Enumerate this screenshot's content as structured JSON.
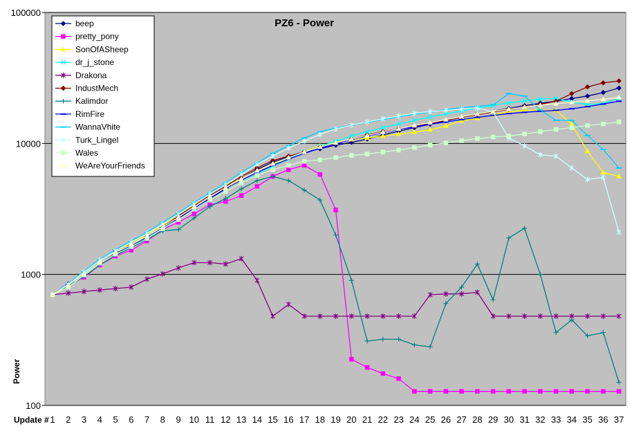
{
  "chart_data": {
    "type": "line",
    "title": "PZ6 - Power",
    "xlabel": "Update #",
    "ylabel": "Power",
    "yscale": "log",
    "ylim": [
      100,
      100000
    ],
    "y_ticks": [
      "100",
      "1000",
      "10000",
      "100000"
    ],
    "x": [
      1,
      2,
      3,
      4,
      5,
      6,
      7,
      8,
      9,
      10,
      11,
      12,
      13,
      14,
      15,
      16,
      17,
      18,
      19,
      20,
      21,
      22,
      23,
      24,
      25,
      26,
      27,
      28,
      29,
      30,
      31,
      32,
      33,
      34,
      35,
      36,
      37
    ],
    "grid": "horizontal",
    "legend_position": "top-left",
    "plot_background": "#c0c0c0",
    "series": [
      {
        "name": "beep",
        "color": "#000080",
        "marker": "diamond",
        "values": [
          700,
          850,
          1000,
          1250,
          1450,
          1650,
          1900,
          2200,
          2650,
          3150,
          3800,
          4500,
          5400,
          6300,
          7200,
          7900,
          8600,
          9100,
          9700,
          10200,
          10800,
          11600,
          12400,
          13200,
          14000,
          14900,
          15800,
          16700,
          17600,
          18500,
          19400,
          20300,
          21000,
          22000,
          23000,
          24500,
          26500
        ]
      },
      {
        "name": "pretty_pony",
        "color": "#ff00ff",
        "marker": "square",
        "values": [
          700,
          830,
          950,
          1180,
          1380,
          1530,
          1800,
          2200,
          2500,
          2900,
          3400,
          3600,
          4000,
          4700,
          5600,
          6300,
          6800,
          5800,
          3100,
          225,
          195,
          175,
          160,
          128,
          128,
          128,
          128,
          128,
          128,
          128,
          128,
          128,
          128,
          128,
          128,
          128,
          128
        ]
      },
      {
        "name": "SonOfASheep",
        "color": "#ffff00",
        "marker": "triangle",
        "values": [
          700,
          830,
          1030,
          1270,
          1500,
          1720,
          2000,
          2400,
          2800,
          3400,
          3950,
          4650,
          5400,
          6200,
          6900,
          7700,
          8700,
          9600,
          10200,
          10700,
          11000,
          11400,
          11800,
          12200,
          12700,
          13600,
          14900,
          15600,
          16600,
          17400,
          17900,
          18000,
          17900,
          14000,
          8700,
          6000,
          5600
        ]
      },
      {
        "name": "dr_j_stone",
        "color": "#00ffff",
        "marker": "x",
        "values": [
          700,
          820,
          1020,
          1250,
          1470,
          1670,
          1930,
          2200,
          2750,
          3200,
          3700,
          4300,
          5000,
          5800,
          6700,
          7600,
          8600,
          9500,
          10400,
          11400,
          12300,
          13200,
          14100,
          15000,
          15900,
          16800,
          17700,
          18600,
          19500,
          20400,
          21100,
          21800,
          22000,
          20700,
          19800,
          20200,
          22000
        ]
      },
      {
        "name": "Drakona",
        "color": "#800080",
        "marker": "star",
        "values": [
          700,
          720,
          740,
          760,
          780,
          800,
          920,
          1010,
          1120,
          1230,
          1230,
          1200,
          1320,
          900,
          480,
          590,
          480,
          480,
          480,
          480,
          480,
          480,
          480,
          480,
          700,
          710,
          710,
          730,
          480,
          480,
          480,
          480,
          480,
          480,
          480,
          480,
          480
        ]
      },
      {
        "name": "IndustMech",
        "color": "#800000",
        "marker": "diamond",
        "values": [
          700,
          840,
          1000,
          1250,
          1480,
          1700,
          1950,
          2300,
          2800,
          3350,
          4000,
          4700,
          5600,
          6500,
          7400,
          8000,
          8600,
          9400,
          10000,
          10800,
          11600,
          12300,
          12900,
          13500,
          14200,
          15000,
          15800,
          16600,
          17400,
          18200,
          19000,
          19900,
          21000,
          24000,
          27000,
          29000,
          30000
        ]
      },
      {
        "name": "Kalimdor",
        "color": "#008080",
        "marker": "plus",
        "values": [
          700,
          820,
          960,
          1180,
          1400,
          1600,
          1850,
          2150,
          2200,
          2700,
          3300,
          3800,
          4500,
          5200,
          5600,
          5200,
          4400,
          3700,
          2000,
          900,
          310,
          320,
          320,
          290,
          280,
          600,
          800,
          1200,
          640,
          1900,
          2250,
          1000,
          360,
          450,
          340,
          360,
          150
        ]
      },
      {
        "name": "RimFire",
        "color": "#0000ff",
        "marker": "dash",
        "values": [
          700,
          830,
          1010,
          1260,
          1480,
          1680,
          1940,
          2280,
          2700,
          3200,
          3800,
          4550,
          5250,
          6000,
          6800,
          7600,
          8400,
          9200,
          9950,
          10700,
          11400,
          12100,
          12800,
          13400,
          14000,
          14600,
          15200,
          15800,
          16400,
          16900,
          17300,
          17600,
          17900,
          18400,
          19100,
          20000,
          21000
        ]
      },
      {
        "name": "WannaVhite",
        "color": "#00ccff",
        "marker": "dash",
        "values": [
          700,
          850,
          1060,
          1300,
          1550,
          1800,
          2100,
          2500,
          2950,
          3550,
          4200,
          5000,
          6000,
          7100,
          8400,
          9600,
          11000,
          12300,
          13100,
          13800,
          14500,
          15200,
          16000,
          16700,
          17400,
          18100,
          18800,
          19200,
          19700,
          24000,
          23000,
          18000,
          15000,
          15000,
          11500,
          9000,
          6500
        ]
      },
      {
        "name": "Turk_Lingel",
        "color": "#ccffff",
        "marker": "star",
        "values": [
          700,
          840,
          1040,
          1280,
          1510,
          1760,
          2050,
          2420,
          2880,
          3450,
          4100,
          4850,
          5800,
          6900,
          8000,
          9200,
          10400,
          11700,
          12900,
          13800,
          14600,
          15400,
          16200,
          17000,
          17500,
          17900,
          18300,
          18600,
          17400,
          11000,
          9600,
          8200,
          8000,
          6500,
          5300,
          5500,
          2100
        ]
      },
      {
        "name": "Wales",
        "color": "#ccffcc",
        "marker": "square",
        "values": [
          700,
          800,
          990,
          1220,
          1430,
          1630,
          1880,
          2230,
          2620,
          3150,
          3700,
          4300,
          5000,
          5700,
          6300,
          6800,
          7300,
          7500,
          7800,
          8100,
          8300,
          8600,
          8900,
          9300,
          9700,
          10100,
          10500,
          10900,
          11200,
          11400,
          11800,
          12300,
          12800,
          13200,
          13700,
          14100,
          14600
        ]
      },
      {
        "name": "WeAreYourFriends",
        "color": "#ffffcc",
        "marker": "triangle",
        "values": [
          700,
          830,
          1010,
          1250,
          1480,
          1690,
          1960,
          2300,
          2730,
          3280,
          3930,
          4600,
          5350,
          6200,
          7000,
          7800,
          8600,
          9400,
          10100,
          10800,
          11500,
          12200,
          12900,
          13700,
          14400,
          15200,
          16000,
          16800,
          17600,
          18300,
          19000,
          19600,
          20100,
          20600,
          21100,
          21700,
          22500
        ]
      }
    ]
  }
}
